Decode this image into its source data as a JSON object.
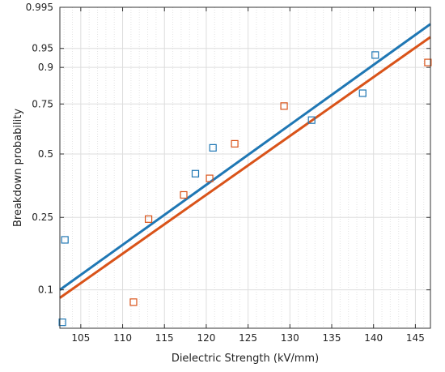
{
  "chart_data": {
    "type": "scatter",
    "title": "",
    "xlabel": "Dielectric Strength (kV/mm)",
    "ylabel": "Breakdown probability",
    "y_scale": "weibull probability",
    "xlim": [
      102.5,
      146.8
    ],
    "ylim": [
      0.06,
      0.995
    ],
    "x_ticks": [
      105,
      110,
      115,
      120,
      125,
      130,
      135,
      140,
      145
    ],
    "y_ticks": [
      {
        "value": 0.1,
        "label": "0.1"
      },
      {
        "value": 0.25,
        "label": "0.25"
      },
      {
        "value": 0.5,
        "label": "0.5"
      },
      {
        "value": 0.75,
        "label": "0.75"
      },
      {
        "value": 0.9,
        "label": "0.9"
      },
      {
        "value": 0.95,
        "label": "0.95"
      },
      {
        "value": 0.995,
        "label": "0.995"
      }
    ],
    "grid": true,
    "series": [
      {
        "color": "#1f77b4",
        "marker": "square-open",
        "points": [
          {
            "x": 102.8,
            "y": 0.065
          },
          {
            "x": 103.1,
            "y": 0.19
          },
          {
            "x": 118.7,
            "y": 0.41
          },
          {
            "x": 120.8,
            "y": 0.53
          },
          {
            "x": 132.6,
            "y": 0.67
          },
          {
            "x": 138.7,
            "y": 0.8
          },
          {
            "x": 140.2,
            "y": 0.935
          }
        ],
        "fit_line": [
          {
            "x": 102.5,
            "y": 0.1
          },
          {
            "x": 146.8,
            "y": 0.985
          }
        ]
      },
      {
        "color": "#d95319",
        "marker": "square-open",
        "points": [
          {
            "x": 111.3,
            "y": 0.085
          },
          {
            "x": 113.1,
            "y": 0.245
          },
          {
            "x": 117.3,
            "y": 0.325
          },
          {
            "x": 120.4,
            "y": 0.39
          },
          {
            "x": 123.4,
            "y": 0.55
          },
          {
            "x": 129.3,
            "y": 0.74
          },
          {
            "x": 146.5,
            "y": 0.915
          }
        ],
        "fit_line": [
          {
            "x": 102.5,
            "y": 0.09
          },
          {
            "x": 146.8,
            "y": 0.97
          }
        ]
      }
    ]
  }
}
